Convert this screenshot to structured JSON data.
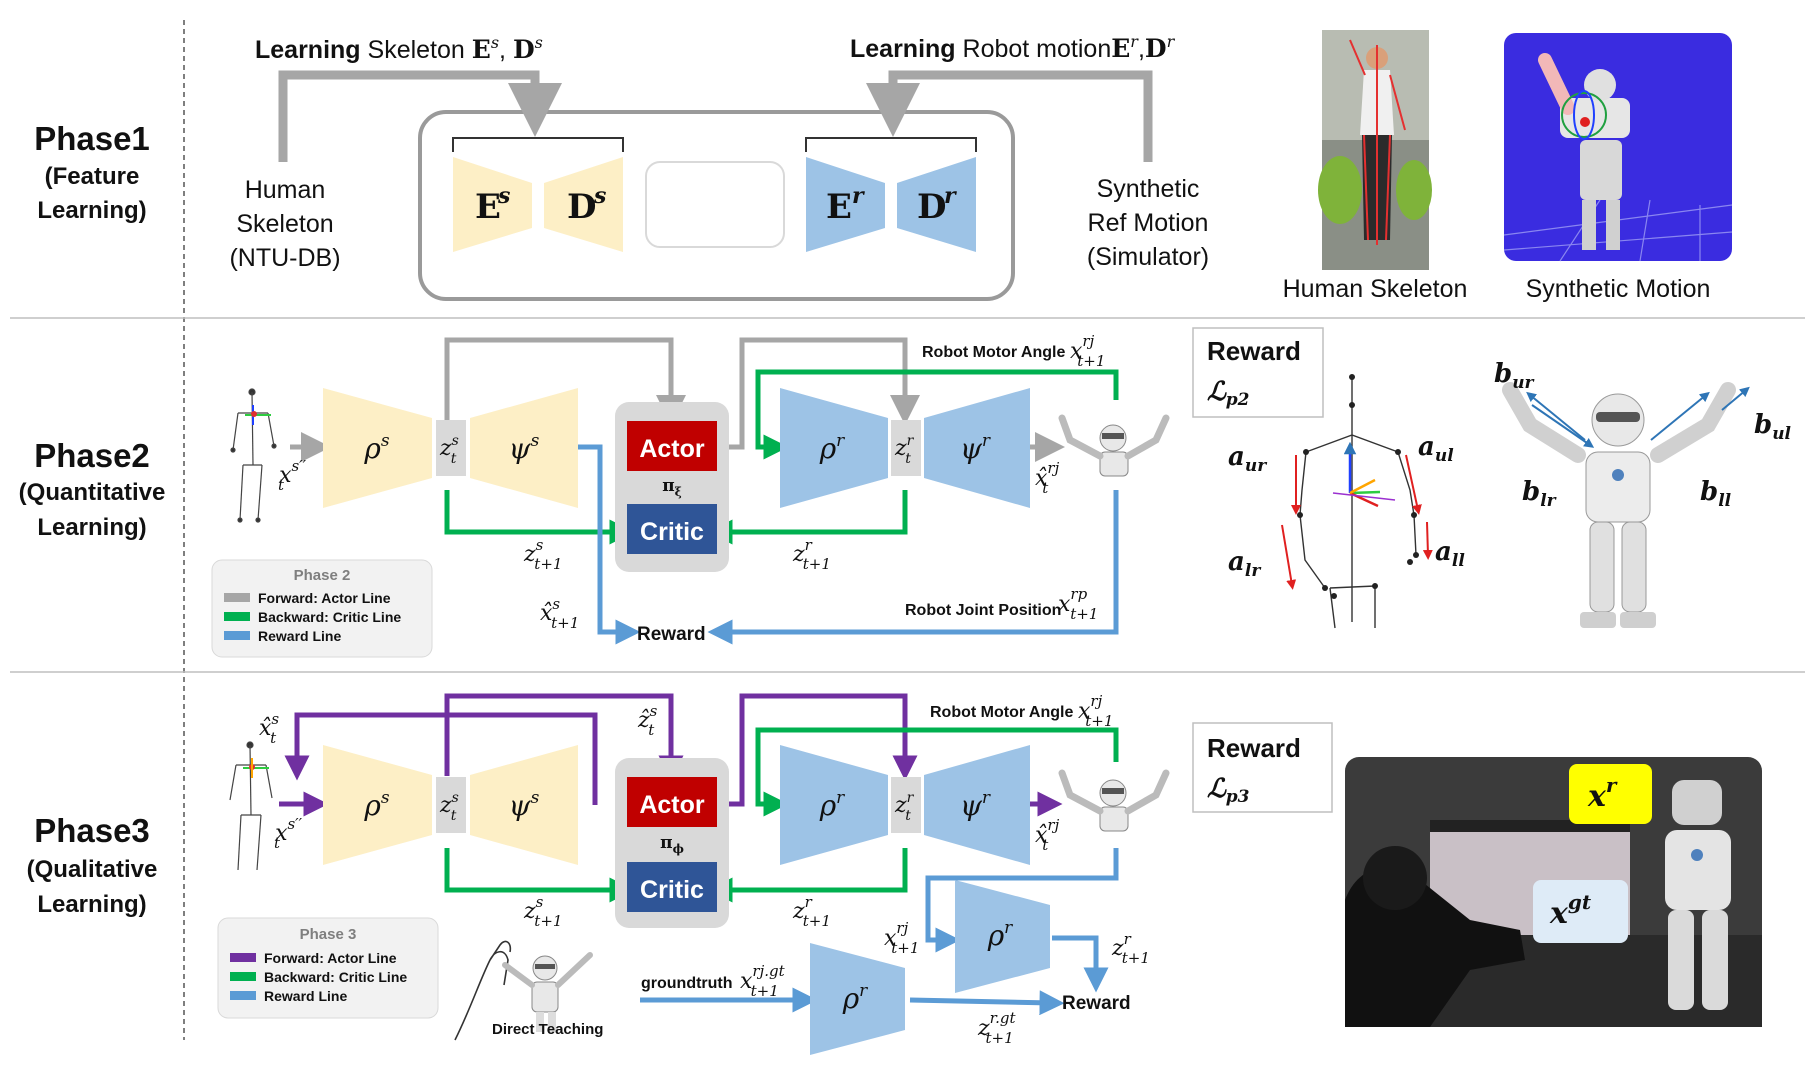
{
  "phase1": {
    "title": "Phase1",
    "subtitle1": "(Feature",
    "subtitle2": "Learning)",
    "learning_skeleton_bold": "Learning",
    "learning_skeleton_rest": " Skeleton ",
    "learning_skeleton_math": "E",
    "learning_robot_bold": "Learning",
    "learning_robot_rest": " Robot motion",
    "human_skeleton_line1": "Human",
    "human_skeleton_line2": "Skeleton",
    "human_skeleton_line3": "(NTU-DB)",
    "synthetic_line1": "Synthetic",
    "synthetic_line2": "Ref Motion",
    "synthetic_line3": "(Simulator)",
    "enc_s": "E",
    "dec_s": "D",
    "enc_r": "E",
    "dec_r": "D",
    "sup_s": "s",
    "sup_r": "r",
    "photo_human_caption": "Human Skeleton",
    "photo_synth_caption": "Synthetic Motion"
  },
  "phase2": {
    "title": "Phase2",
    "subtitle1": "(Quantitative",
    "subtitle2": "Learning)",
    "actor": "Actor",
    "critic": "Critic",
    "policy": "π",
    "policy_sub": "ξ",
    "reward": "Reward",
    "robot_motor_angle": "Robot Motor Angle",
    "robot_joint_position": "Robot Joint Position",
    "reward_box_title": "Reward",
    "reward_box_loss": "ℒ",
    "reward_box_loss_sub": "p2",
    "legend_title": "Phase 2",
    "legend_forward": "Forward:   Actor Line",
    "legend_backward": "Backward: Critic Line",
    "legend_reward": "Reward Line"
  },
  "phase3": {
    "title": "Phase3",
    "subtitle1": "(Qualitative",
    "subtitle2": "Learning)",
    "actor": "Actor",
    "critic": "Critic",
    "policy": "π",
    "policy_sub": "ϕ",
    "reward": "Reward",
    "robot_motor_angle": "Robot Motor Angle",
    "groundtruth": "groundtruth",
    "direct_teaching": "Direct Teaching",
    "reward_box_title": "Reward",
    "reward_box_loss": "ℒ",
    "reward_box_loss_sub": "p3",
    "legend_title": "Phase 3",
    "legend_forward": "Forward:   Actor Line",
    "legend_backward": "Backward: Critic Line",
    "legend_reward": "Reward Line",
    "label_xr": "x",
    "label_xr_sup": "r",
    "label_xgt": "x",
    "label_xgt_sup": "gt"
  },
  "math": {
    "rho": "ρ",
    "psi": "ψ",
    "z": "z",
    "x": "x",
    "sup_s": "s",
    "sup_r": "r",
    "sub_t": "t",
    "sub_t1": "t+1",
    "sup_s_dd": "s′′",
    "sup_rj": "rj",
    "sup_rp": "rp",
    "sup_rjgt": "rj.gt",
    "sup_rgt": "r.gt",
    "xhat": "x̂",
    "zhat": "ẑ"
  },
  "arm_labels": {
    "a_ur": "a",
    "a_ur_sub": "ur",
    "a_ul": "a",
    "a_ul_sub": "ul",
    "a_lr": "a",
    "a_lr_sub": "lr",
    "a_ll": "a",
    "a_ll_sub": "ll",
    "b_ur": "b",
    "b_ur_sub": "ur",
    "b_ul": "b",
    "b_ul_sub": "ul",
    "b_lr": "b",
    "b_lr_sub": "lr",
    "b_ll": "b",
    "b_ll_sub": "ll"
  },
  "colors": {
    "encoder_yellow": "#fdefc6",
    "encoder_blue": "#9dc3e6",
    "actor_red": "#c00000",
    "critic_blue": "#2f5597",
    "forward_gray": "#a6a6a6",
    "forward_purple": "#7030a0",
    "backward_green": "#00b050",
    "reward_blue": "#5b9bd5",
    "xr_yellow": "#ffff00",
    "xgt_lightblue": "#deebf7"
  }
}
